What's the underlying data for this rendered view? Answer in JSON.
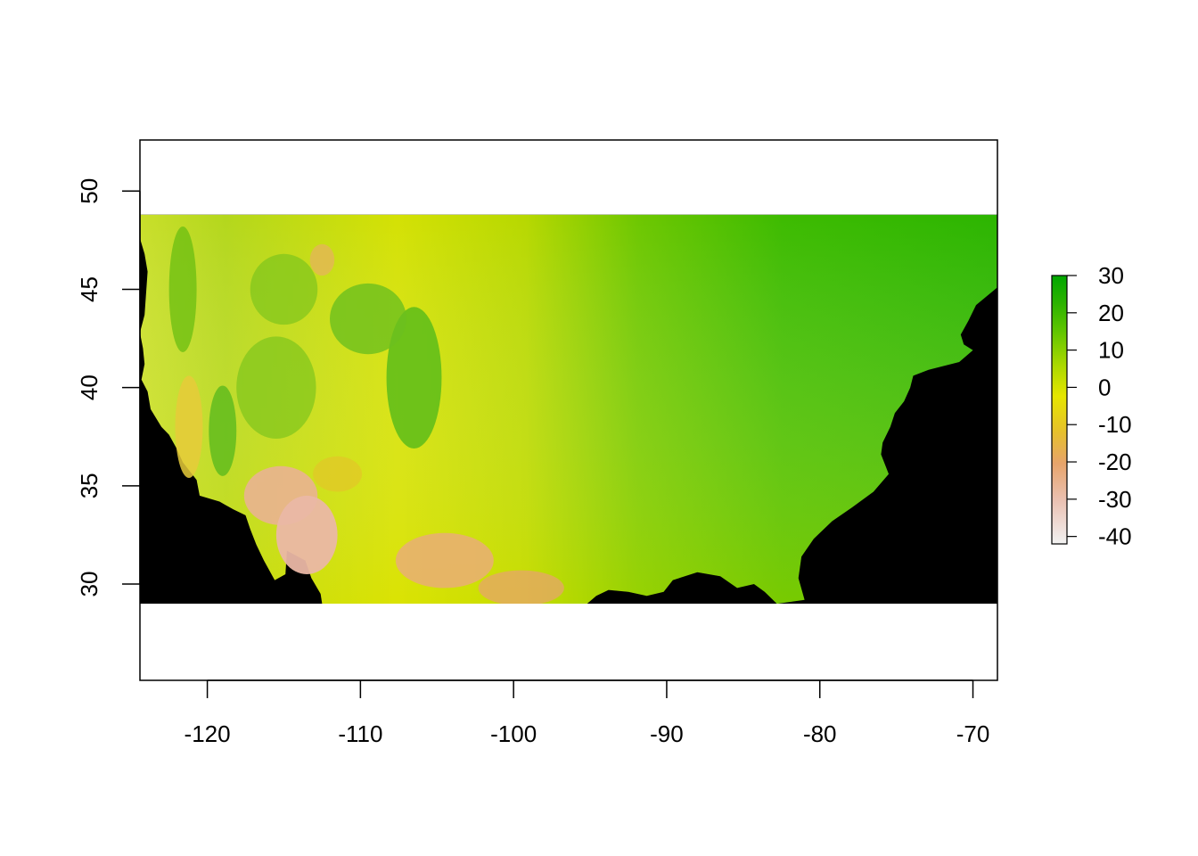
{
  "chart_data": {
    "type": "heatmap",
    "title": "",
    "xlabel": "",
    "ylabel": "",
    "xlim": [
      -124.4,
      -68.4
    ],
    "ylim": [
      25.1,
      52.6
    ],
    "raster_extent": {
      "lon": [
        -124.4,
        -68.4
      ],
      "lat": [
        29.0,
        48.8
      ]
    },
    "x_ticks": [
      -120,
      -110,
      -100,
      -90,
      -80,
      -70
    ],
    "x_tick_labels": [
      "-120",
      "-110",
      "-100",
      "-90",
      "-80",
      "-70"
    ],
    "y_ticks": [
      30,
      35,
      40,
      45,
      50
    ],
    "y_tick_labels": [
      "30",
      "35",
      "40",
      "45",
      "50"
    ],
    "legend": {
      "placement": "right",
      "range": [
        -42,
        30
      ],
      "ticks": [
        30,
        20,
        10,
        0,
        -10,
        -20,
        -30,
        -40
      ],
      "tick_labels": [
        "30",
        "20",
        "10",
        "0",
        "-10",
        "-20",
        "-30",
        "-40"
      ],
      "colors": [
        "#f2f2f2",
        "#eac1b3",
        "#e7a46b",
        "#e6c12a",
        "#e6e600",
        "#a8d800",
        "#5cc400",
        "#2ab200",
        "#00a600"
      ]
    },
    "no_data_color": "#000000",
    "grid": false
  }
}
